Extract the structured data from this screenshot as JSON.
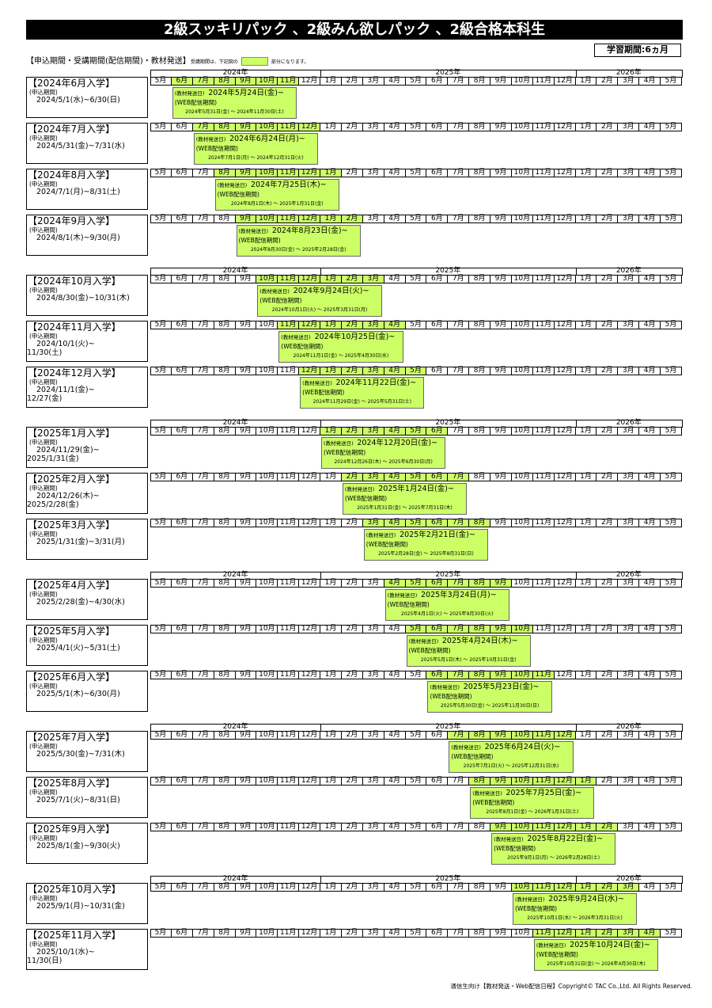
{
  "header": {
    "title": "2級スッキリパック 、2級みん欲しパック 、2級合格本科生",
    "badge": "学習期間:6ヵ月",
    "legend_left": "【申込期間・受講期間(配信期間)・教材発送】",
    "legend_note": "受講期間は、下記図の",
    "legend_note_end": "部分になります。"
  },
  "years": [
    "2024年",
    "2025年",
    "2026年"
  ],
  "months": [
    "5月",
    "6月",
    "7月",
    "8月",
    "9月",
    "10月",
    "11月",
    "12月",
    "1月",
    "2月",
    "3月",
    "4月",
    "5月",
    "6月",
    "7月",
    "8月",
    "9月",
    "10月",
    "11月",
    "12月",
    "1月",
    "2月",
    "3月",
    "4月",
    "5月"
  ],
  "labels": {
    "apply": "(申込期間)",
    "ship": "(教材発送日)",
    "web": "(WEB配信期間)"
  },
  "groups": [
    {
      "entries": [
        {
          "title": "【2024年6月入学】",
          "apply": [
            "2024/5/1(水)~6/30(日)"
          ],
          "ship": "2024年5月24日(金)~",
          "web": "2024年5月31日(金) ～ 2024年11月30日(土)"
        },
        {
          "title": "【2024年7月入学】",
          "apply": [
            "2024/5/31(金)~7/31(水)"
          ],
          "ship": "2024年6月24日(月)~",
          "web": "2024年7月1日(月) ～ 2024年12月31日(火)"
        },
        {
          "title": "【2024年8月入学】",
          "apply": [
            "2024/7/1(月)~8/31(土)"
          ],
          "ship": "2024年7月25日(木)~",
          "web": "2024年8月1日(木) ～ 2025年1月31日(金)"
        },
        {
          "title": "【2024年9月入学】",
          "apply": [
            "2024/8/1(木)~9/30(月)"
          ],
          "ship": "2024年8月23日(金)~",
          "web": "2024年8月30日(金) ～ 2025年2月28日(金)"
        }
      ]
    },
    {
      "entries": [
        {
          "title": "【2024年10月入学】",
          "apply": [
            "2024/8/30(金)~10/31(木)"
          ],
          "ship": "2024年9月24日(火)~",
          "web": "2024年10月1日(火) ～ 2025年3月31日(月)"
        },
        {
          "title": "【2024年11月入学】",
          "apply": [
            "2024/10/1(火)~",
            "11/30(土)"
          ],
          "ship": "2024年10月25日(金)~",
          "web": "2024年11月1日(金) ～ 2025年4月30日(水)"
        },
        {
          "title": "【2024年12月入学】",
          "apply": [
            "2024/11/1(金)~",
            "12/27(金)"
          ],
          "ship": "2024年11月22日(金)~",
          "web": "2024年11月29日(金) ～ 2025年5月31日(土)"
        }
      ]
    },
    {
      "entries": [
        {
          "title": "【2025年1月入学】",
          "apply": [
            "2024/11/29(金)~",
            "2025/1/31(金)"
          ],
          "ship": "2024年12月20日(金)~",
          "web": "2024年12月26日(木) ～ 2025年6月30日(月)"
        },
        {
          "title": "【2025年2月入学】",
          "apply": [
            "2024/12/26(木)~",
            "2025/2/28(金)"
          ],
          "ship": "2025年1月24日(金)~",
          "web": "2025年1月31日(金) ～ 2025年7月31日(木)"
        },
        {
          "title": "【2025年3月入学】",
          "apply": [
            "2025/1/31(金)~3/31(月)"
          ],
          "ship": "2025年2月21日(金)~",
          "web": "2025年2月28日(金) ～ 2025年8月31日(日)"
        }
      ]
    },
    {
      "entries": [
        {
          "title": "【2025年4月入学】",
          "apply": [
            "2025/2/28(金)~4/30(水)"
          ],
          "ship": "2025年3月24日(月)~",
          "web": "2025年4月1日(火) ～ 2025年9月30日(火)"
        },
        {
          "title": "【2025年5月入学】",
          "apply": [
            "2025/4/1(火)~5/31(土)"
          ],
          "ship": "2025年4月24日(木)~",
          "web": "2025年5月1日(木) ～ 2025年10月31日(金)"
        },
        {
          "title": "【2025年6月入学】",
          "apply": [
            "2025/5/1(木)~6/30(月)"
          ],
          "ship": "2025年5月23日(金)~",
          "web": "2025年5月30日(金) ～ 2025年11月30日(日)"
        }
      ]
    },
    {
      "entries": [
        {
          "title": "【2025年7月入学】",
          "apply": [
            "2025/5/30(金)~7/31(木)"
          ],
          "ship": "2025年6月24日(火)~",
          "web": "2025年7月1日(火) ～ 2025年12月31日(水)"
        },
        {
          "title": "【2025年8月入学】",
          "apply": [
            "2025/7/1(火)~8/31(日)"
          ],
          "ship": "2025年7月25日(金)~",
          "web": "2025年8月1日(金) ～ 2026年1月31日(土)"
        },
        {
          "title": "【2025年9月入学】",
          "apply": [
            "2025/8/1(金)~9/30(火)"
          ],
          "ship": "2025年8月22日(金)~",
          "web": "2025年9月1日(月) ～ 2026年2月28日(土)"
        }
      ]
    },
    {
      "entries": [
        {
          "title": "【2025年10月入学】",
          "apply": [
            "2025/9/1(月)~10/31(金)"
          ],
          "ship": "2025年9月24日(水)~",
          "web": "2025年10月1日(水) ～ 2026年3月31日(火)"
        },
        {
          "title": "【2025年11月入学】",
          "apply": [
            "2025/10/1(水)~",
            "11/30(日)"
          ],
          "ship": "2025年10月24日(金)~",
          "web": "2025年10月31日(金) ～ 2026年4月30日(木)"
        }
      ]
    }
  ],
  "footer": "通信生向け【教材発送・Web配信日程】Copyright© TAC Co.,Ltd. All Rights Reserved."
}
